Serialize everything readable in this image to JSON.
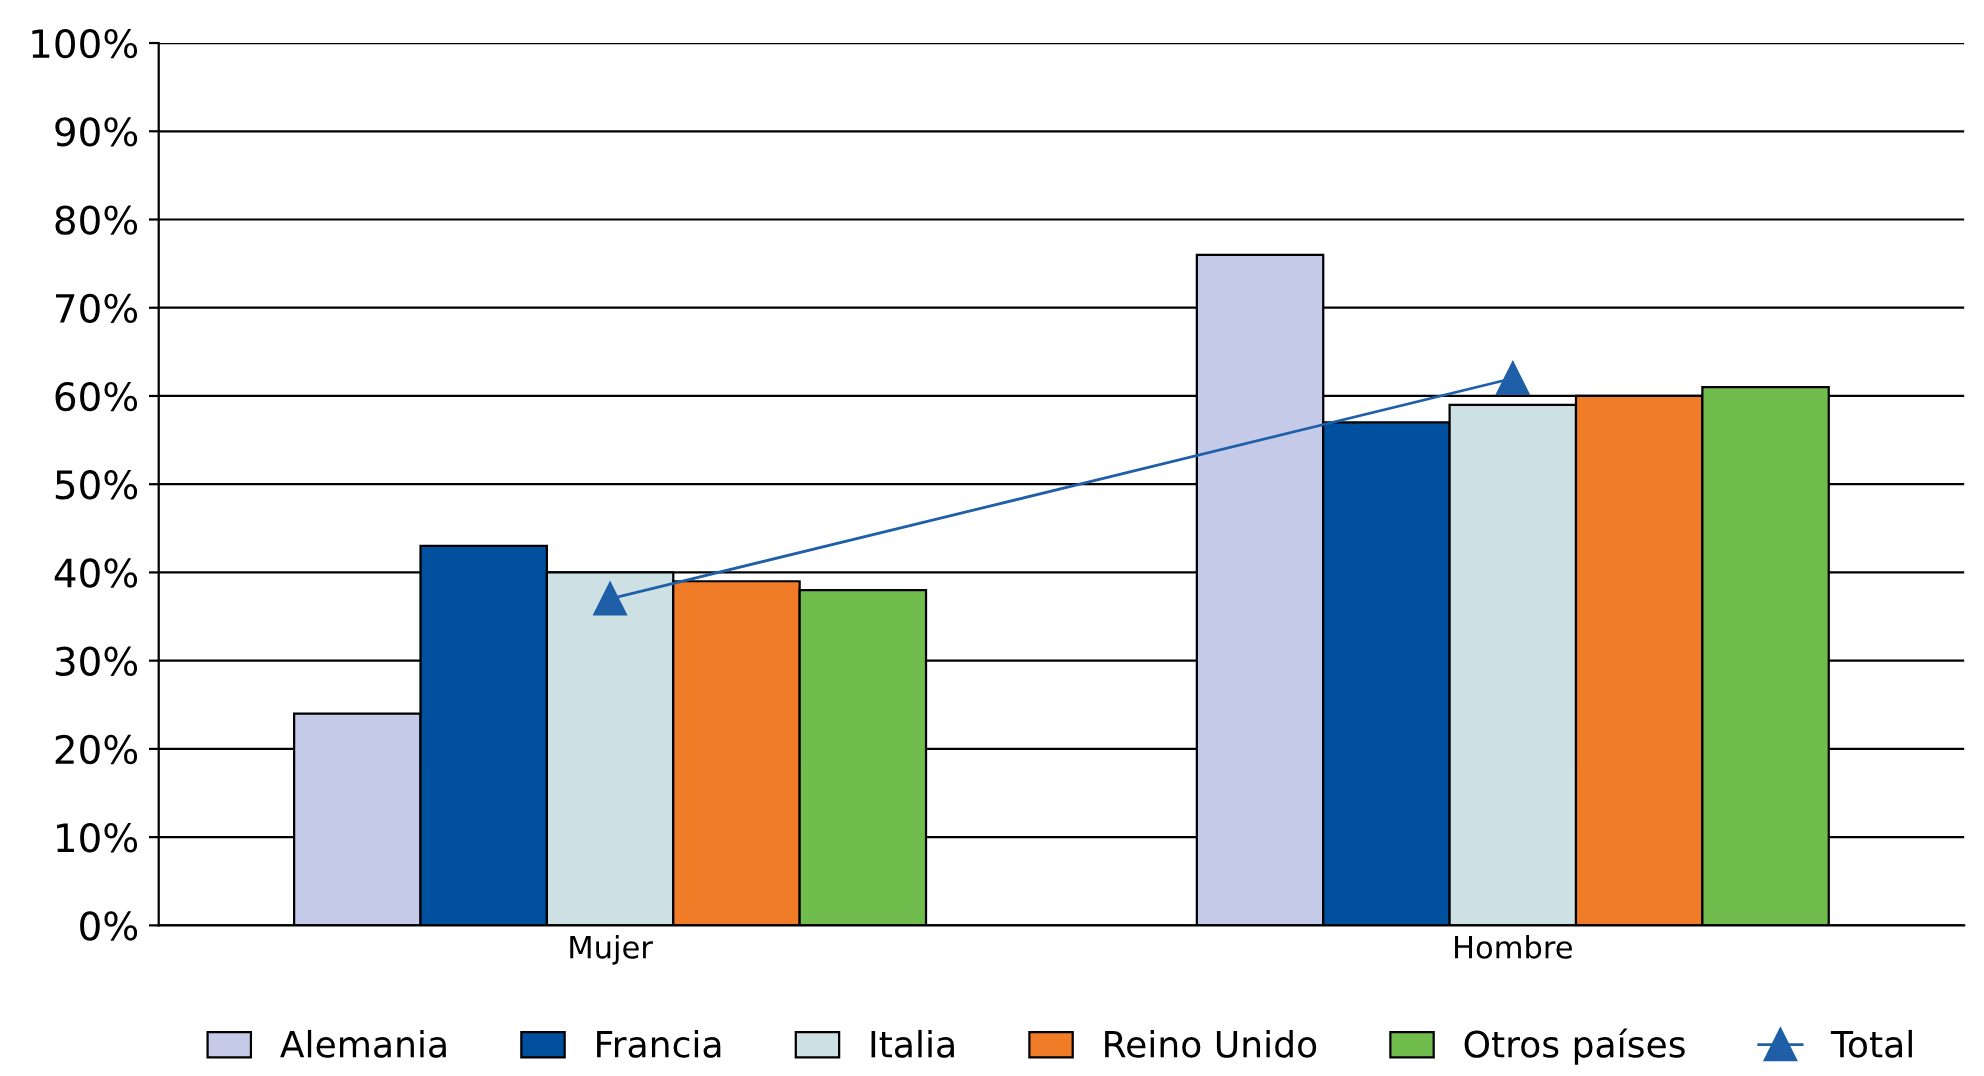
{
  "chart_data": {
    "type": "bar",
    "categories": [
      "Mujer",
      "Hombre"
    ],
    "series": [
      {
        "name": "Alemania",
        "color": "#c5cae8",
        "values": [
          24,
          76
        ]
      },
      {
        "name": "Francia",
        "color": "#0050a0",
        "values": [
          43,
          57
        ]
      },
      {
        "name": "Italia",
        "color": "#cde0e3",
        "values": [
          40,
          59
        ]
      },
      {
        "name": "Reino Unido",
        "color": "#f07c28",
        "values": [
          39,
          60
        ]
      },
      {
        "name": "Otros países",
        "color": "#70bc4c",
        "values": [
          38,
          61
        ]
      },
      {
        "name": "Total",
        "color": "#1f5fa8",
        "type": "line",
        "marker": "triangle",
        "values": [
          37,
          62
        ]
      }
    ],
    "ylim": [
      0,
      100
    ],
    "yticks": [
      {
        "value": 0,
        "label": "0%"
      },
      {
        "value": 10,
        "label": "10%"
      },
      {
        "value": 20,
        "label": "20%"
      },
      {
        "value": 30,
        "label": "30%"
      },
      {
        "value": 40,
        "label": "40%"
      },
      {
        "value": 50,
        "label": "50%"
      },
      {
        "value": 60,
        "label": "60%"
      },
      {
        "value": 70,
        "label": "70%"
      },
      {
        "value": 80,
        "label": "80%"
      },
      {
        "value": 90,
        "label": "90%"
      },
      {
        "value": 100,
        "label": "100%"
      }
    ],
    "grid": "y",
    "legend": "bottom"
  }
}
